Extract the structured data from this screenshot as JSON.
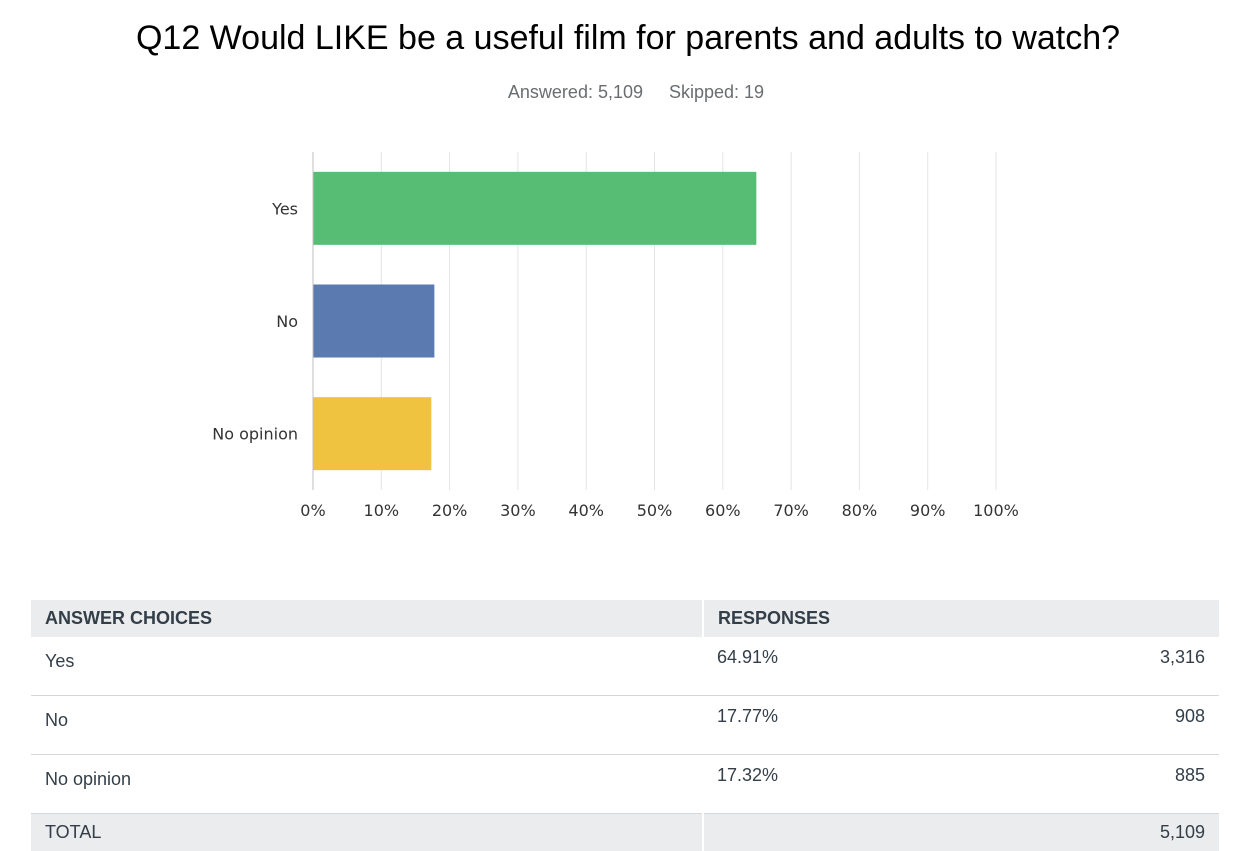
{
  "question": {
    "title": "Q12 Would LIKE be a useful film for parents and adults to watch?",
    "answered": "Answered: 5,109",
    "skipped": "Skipped: 19"
  },
  "chart_data": {
    "type": "bar",
    "orientation": "horizontal",
    "categories": [
      "Yes",
      "No",
      "No opinion"
    ],
    "values": [
      64.91,
      17.77,
      17.32
    ],
    "colors": [
      "#57bd75",
      "#5a7ab0",
      "#efc23f"
    ],
    "xlim": [
      0,
      100
    ],
    "x_ticks": [
      "0%",
      "10%",
      "20%",
      "30%",
      "40%",
      "50%",
      "60%",
      "70%",
      "80%",
      "90%",
      "100%"
    ],
    "grid": "vertical",
    "title": "",
    "xlabel": "",
    "ylabel": ""
  },
  "table": {
    "headers": [
      "ANSWER CHOICES",
      "RESPONSES"
    ],
    "rows": [
      {
        "choice": "Yes",
        "percent": "64.91%",
        "count": "3,316"
      },
      {
        "choice": "No",
        "percent": "17.77%",
        "count": "908"
      },
      {
        "choice": "No opinion",
        "percent": "17.32%",
        "count": "885"
      }
    ],
    "total": {
      "label": "TOTAL",
      "count": "5,109"
    }
  }
}
